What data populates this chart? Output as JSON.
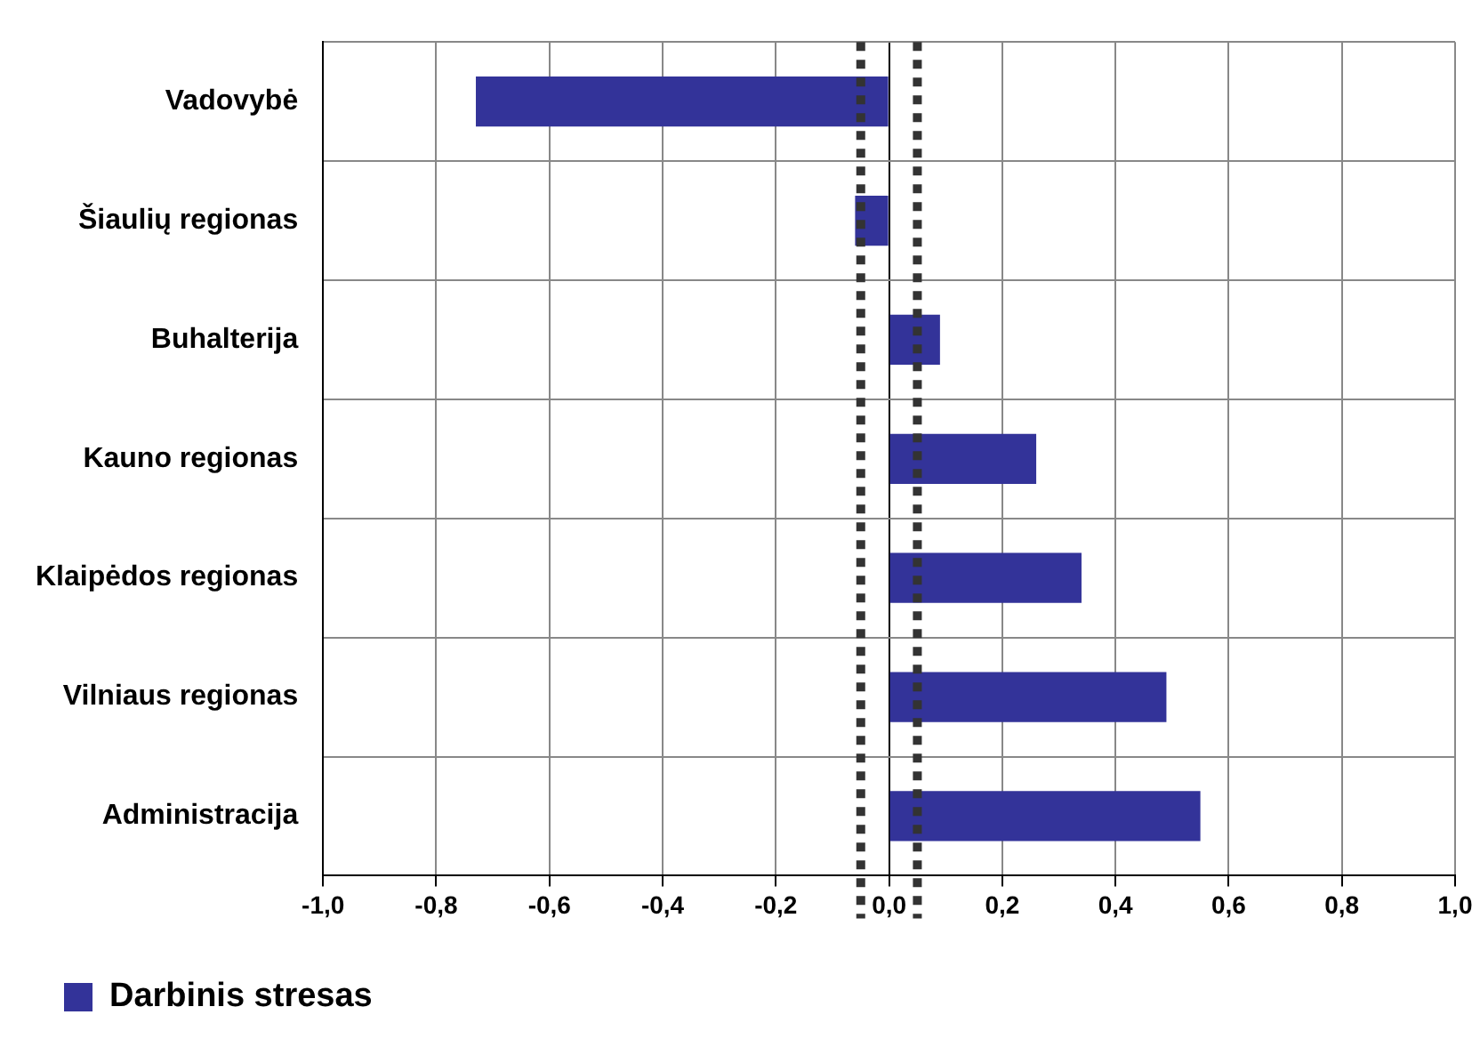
{
  "chart_data": {
    "type": "bar",
    "orientation": "horizontal",
    "categories": [
      "Vadovybė",
      "Šiaulių regionas",
      "Buhalterija",
      "Kauno regionas",
      "Klaipėdos regionas",
      "Vilniaus regionas",
      "Administracija"
    ],
    "series": [
      {
        "name": "Darbinis stresas",
        "color": "#333399",
        "values": [
          -0.73,
          -0.06,
          0.09,
          0.26,
          0.34,
          0.49,
          0.55
        ]
      }
    ],
    "xlim": [
      -1,
      1
    ],
    "xticks": [
      {
        "value": -1,
        "label": "-1,0"
      },
      {
        "value": -0.8,
        "label": "-0,8"
      },
      {
        "value": -0.6,
        "label": "-0,6"
      },
      {
        "value": -0.4,
        "label": "-0,4"
      },
      {
        "value": -0.2,
        "label": "-0,2"
      },
      {
        "value": 0,
        "label": "0,0"
      },
      {
        "value": 0.2,
        "label": "0,2"
      },
      {
        "value": 0.4,
        "label": "0,4"
      },
      {
        "value": 0.6,
        "label": "0,6"
      },
      {
        "value": 0.8,
        "label": "0,8"
      },
      {
        "value": 1,
        "label": "1,0"
      }
    ],
    "ref_lines": [
      {
        "axis": "x",
        "value": -0.05,
        "color": "#333333",
        "line_style": "dotted"
      },
      {
        "axis": "x",
        "value": 0.05,
        "color": "#333333",
        "line_style": "dotted"
      }
    ],
    "grid": true,
    "legend": "bottom left"
  }
}
